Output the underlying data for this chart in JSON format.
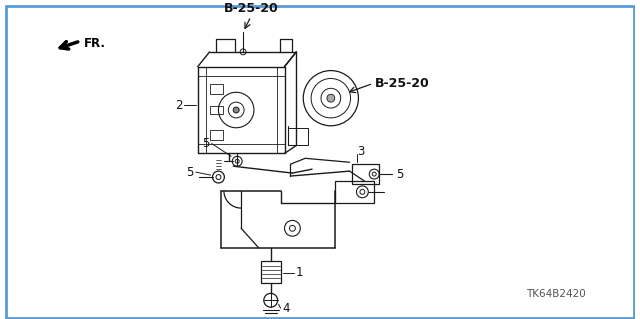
{
  "background_color": "#ffffff",
  "border_color": "#5b9bd5",
  "labels": {
    "B25_20_top": "B-25-20",
    "B25_20_right": "B-25-20",
    "part2": "2",
    "part3": "3",
    "part4": "4",
    "part5a": "5",
    "part5b": "5",
    "part5c": "5",
    "part1": "1",
    "fr": "FR.",
    "part_number": "TK64B2420"
  },
  "line_color": "#1a1a1a",
  "text_color": "#111111",
  "figsize": [
    6.4,
    3.19
  ],
  "dpi": 100,
  "image_xlim": [
    0,
    640
  ],
  "image_ylim": [
    0,
    319
  ]
}
